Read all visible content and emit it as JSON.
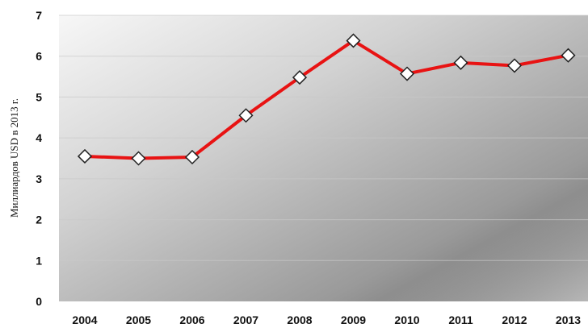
{
  "chart_data": {
    "type": "line",
    "title": "",
    "xlabel": "",
    "ylabel": "Миллиардов USD в 2013 г.",
    "x": [
      "2004",
      "2005",
      "2006",
      "2007",
      "2008",
      "2009",
      "2010",
      "2011",
      "2012",
      "2013"
    ],
    "series": [
      {
        "values": [
          3.55,
          3.5,
          3.53,
          4.55,
          5.48,
          6.38,
          5.57,
          5.84,
          5.77,
          6.02
        ]
      }
    ],
    "ylim": [
      0,
      7
    ],
    "yticks": [
      "0",
      "1",
      "2",
      "3",
      "4",
      "5",
      "6",
      "7"
    ],
    "grid": true,
    "legend": "none",
    "colors": {
      "line": "#e81313",
      "marker_fill": "#ffffff",
      "marker_stroke": "#222222",
      "plot_bg_light": "#f4f4f4",
      "plot_bg_dark": "#6e6e6e",
      "gridline": "#c9c9c9"
    },
    "marker": "diamond-icon"
  }
}
